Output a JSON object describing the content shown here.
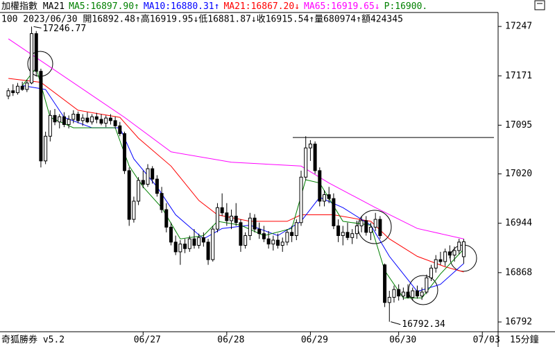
{
  "chart_data": {
    "type": "candlestick",
    "header": [
      {
        "text": "加權指數 MA21",
        "color": "#000000"
      },
      {
        "text": "MA5:16897.90↑",
        "color": "#008000"
      },
      {
        "text": "MA10:16880.31↑",
        "color": "#0000ff"
      },
      {
        "text": "MA21:16867.20↓",
        "color": "#ff0000"
      },
      {
        "text": "MA65:16919.65↓",
        "color": "#ff00ff"
      },
      {
        "text": "P:16900.",
        "color": "#008000"
      }
    ],
    "info": "100 2023/06/30 開16892.48↑高16919.95↓低16881.87↓收16915.54↑量680974↑額424345",
    "footer": "奇狐勝券 v5.2",
    "period": "15分鐘",
    "annotations": [
      "17246.77",
      "16792.34"
    ],
    "hline": 17076,
    "ylim": [
      16777,
      17268.5
    ],
    "yticks": [
      17247,
      17171,
      17095,
      17020,
      16944,
      16868,
      16792
    ],
    "xlim": [
      -1.8,
      105.4
    ],
    "xticks": [
      {
        "value": 29,
        "label": "06/27"
      },
      {
        "value": 47,
        "label": "06/28"
      },
      {
        "value": 65,
        "label": "06/29"
      },
      {
        "value": 84,
        "label": "06/30"
      },
      {
        "value": 102,
        "label": "07/03"
      }
    ],
    "ohlc": [
      [
        17140,
        17152,
        17135,
        17148
      ],
      [
        17148,
        17158,
        17140,
        17145
      ],
      [
        17145,
        17160,
        17142,
        17155
      ],
      [
        17155,
        17162,
        17148,
        17150
      ],
      [
        17150,
        17165,
        17146,
        17160
      ],
      [
        17160,
        17246.77,
        17158,
        17236
      ],
      [
        17236,
        17240,
        17170,
        17178
      ],
      [
        17178,
        17182,
        17030,
        17040
      ],
      [
        17040,
        17085,
        17035,
        17078
      ],
      [
        17078,
        17118,
        17070,
        17110
      ],
      [
        17110,
        17120,
        17095,
        17100
      ],
      [
        17100,
        17112,
        17090,
        17108
      ],
      [
        17108,
        17115,
        17092,
        17096
      ],
      [
        17096,
        17110,
        17090,
        17104
      ],
      [
        17104,
        17118,
        17098,
        17112
      ],
      [
        17112,
        17116,
        17098,
        17102
      ],
      [
        17102,
        17112,
        17094,
        17106
      ],
      [
        17106,
        17115,
        17098,
        17100
      ],
      [
        17100,
        17112,
        17096,
        17108
      ],
      [
        17108,
        17114,
        17098,
        17104
      ],
      [
        17104,
        17112,
        17095,
        17098
      ],
      [
        17098,
        17110,
        17092,
        17106
      ],
      [
        17106,
        17112,
        17096,
        17102
      ],
      [
        17102,
        17108,
        17090,
        17094
      ],
      [
        17094,
        17100,
        17078,
        17082
      ],
      [
        17082,
        17085,
        17020,
        17025
      ],
      [
        17025,
        17030,
        16940,
        16950
      ],
      [
        16950,
        16985,
        16945,
        16978
      ],
      [
        16978,
        17015,
        16972,
        17010
      ],
      [
        17010,
        17025,
        16998,
        17004
      ],
      [
        17004,
        17035,
        17000,
        17028
      ],
      [
        17028,
        17032,
        17005,
        17012
      ],
      [
        17012,
        17018,
        16985,
        16990
      ],
      [
        16990,
        17000,
        16960,
        16965
      ],
      [
        16965,
        16975,
        16930,
        16938
      ],
      [
        16938,
        16945,
        16910,
        16915
      ],
      [
        16915,
        16925,
        16895,
        16900
      ],
      [
        16900,
        16918,
        16880,
        16912
      ],
      [
        16912,
        16920,
        16898,
        16905
      ],
      [
        16905,
        16925,
        16900,
        16920
      ],
      [
        16920,
        16935,
        16905,
        16910
      ],
      [
        16910,
        16928,
        16905,
        16922
      ],
      [
        16922,
        16930,
        16908,
        16915
      ],
      [
        16915,
        16920,
        16880,
        16888
      ],
      [
        16888,
        16940,
        16885,
        16935
      ],
      [
        16935,
        16975,
        16930,
        16968
      ],
      [
        16968,
        16990,
        16955,
        16960
      ],
      [
        16960,
        16975,
        16940,
        16948
      ],
      [
        16948,
        16965,
        16935,
        16955
      ],
      [
        16955,
        16975,
        16940,
        16945
      ],
      [
        16945,
        16950,
        16900,
        16910
      ],
      [
        16910,
        16930,
        16905,
        16925
      ],
      [
        16925,
        16960,
        16918,
        16952
      ],
      [
        16952,
        16958,
        16930,
        16935
      ],
      [
        16935,
        16945,
        16920,
        16928
      ],
      [
        16928,
        16940,
        16915,
        16920
      ],
      [
        16920,
        16932,
        16905,
        16912
      ],
      [
        16912,
        16925,
        16902,
        16918
      ],
      [
        16918,
        16928,
        16905,
        16910
      ],
      [
        16910,
        16922,
        16900,
        16915
      ],
      [
        16915,
        16935,
        16910,
        16930
      ],
      [
        16930,
        16940,
        16915,
        16925
      ],
      [
        16925,
        16950,
        16918,
        16945
      ],
      [
        16945,
        17025,
        16940,
        17015
      ],
      [
        17015,
        17078,
        17010,
        17060
      ],
      [
        17060,
        17072,
        17040,
        17066
      ],
      [
        17066,
        17070,
        17020,
        17025
      ],
      [
        17025,
        17030,
        16970,
        16978
      ],
      [
        16978,
        16995,
        16970,
        16988
      ],
      [
        16988,
        17000,
        16975,
        16982
      ],
      [
        16982,
        16990,
        16935,
        16940
      ],
      [
        16940,
        16950,
        16915,
        16925
      ],
      [
        16925,
        16940,
        16910,
        16930
      ],
      [
        16930,
        16945,
        16918,
        16922
      ],
      [
        16922,
        16935,
        16912,
        16928
      ],
      [
        16928,
        16948,
        16920,
        16940
      ],
      [
        16940,
        16955,
        16930,
        16948
      ],
      [
        16948,
        16955,
        16925,
        16930
      ],
      [
        16930,
        16945,
        16918,
        16938
      ],
      [
        16938,
        16960,
        16932,
        16950
      ],
      [
        16950,
        16955,
        16920,
        16925
      ],
      [
        16880,
        16882,
        16815,
        16822
      ],
      [
        16822,
        16840,
        16792.34,
        16830
      ],
      [
        16830,
        16848,
        16822,
        16842
      ],
      [
        16842,
        16850,
        16825,
        16832
      ],
      [
        16832,
        16845,
        16826,
        16838
      ],
      [
        16838,
        16850,
        16828,
        16830
      ],
      [
        16830,
        16845,
        16825,
        16840
      ],
      [
        16840,
        16848,
        16828,
        16832
      ],
      [
        16832,
        16845,
        16826,
        16838
      ],
      [
        16838,
        16865,
        16835,
        16860
      ],
      [
        16860,
        16880,
        16855,
        16875
      ],
      [
        16875,
        16895,
        16868,
        16888
      ],
      [
        16888,
        16900,
        16880,
        16885
      ],
      [
        16885,
        16905,
        16878,
        16900
      ],
      [
        16900,
        16910,
        16890,
        16895
      ],
      [
        16895,
        16908,
        16885,
        16902
      ],
      [
        16902,
        16920,
        16896,
        16915
      ],
      [
        16892.48,
        16919.95,
        16881.87,
        16915.54
      ]
    ],
    "lines": [
      {
        "color": "#ff00ff",
        "x": [
          0,
          25,
          35,
          48,
          63,
          69,
          79,
          88,
          98
        ],
        "values": [
          17228,
          17107,
          17054,
          17038,
          17032,
          17006,
          16968,
          16936,
          16920
        ]
      },
      {
        "color": "#ff0000",
        "x": [
          0,
          7,
          15,
          24,
          28,
          35,
          41,
          45,
          52,
          60,
          63,
          70,
          78,
          82,
          88,
          94,
          98
        ],
        "values": [
          17167,
          17161,
          17118,
          17107,
          17075,
          17032,
          16979,
          16957,
          16947,
          16947,
          16957,
          16957,
          16947,
          16920,
          16893,
          16877,
          16869
        ]
      },
      {
        "color": "#0000ff",
        "x": [
          3,
          8,
          12,
          18,
          24,
          27,
          32,
          36,
          42,
          46,
          52,
          58,
          63,
          67,
          72,
          78,
          82,
          88,
          93,
          98
        ],
        "values": [
          17156,
          17150,
          17107,
          17091,
          17091,
          17043,
          17000,
          16957,
          16920,
          16936,
          16941,
          16925,
          16947,
          16984,
          16968,
          16941,
          16893,
          16839,
          16850,
          16882
        ]
      },
      {
        "color": "#008000",
        "x": [
          3,
          6,
          9,
          14,
          23,
          26,
          29,
          33,
          37,
          42,
          45,
          50,
          55,
          61,
          64,
          67,
          72,
          78,
          81,
          85,
          89,
          93,
          98
        ],
        "values": [
          17156,
          17183,
          17107,
          17091,
          17091,
          17032,
          17000,
          16968,
          16920,
          16925,
          16947,
          16941,
          16925,
          16936,
          17011,
          17006,
          16947,
          16941,
          16871,
          16829,
          16829,
          16866,
          16904
        ]
      }
    ]
  }
}
